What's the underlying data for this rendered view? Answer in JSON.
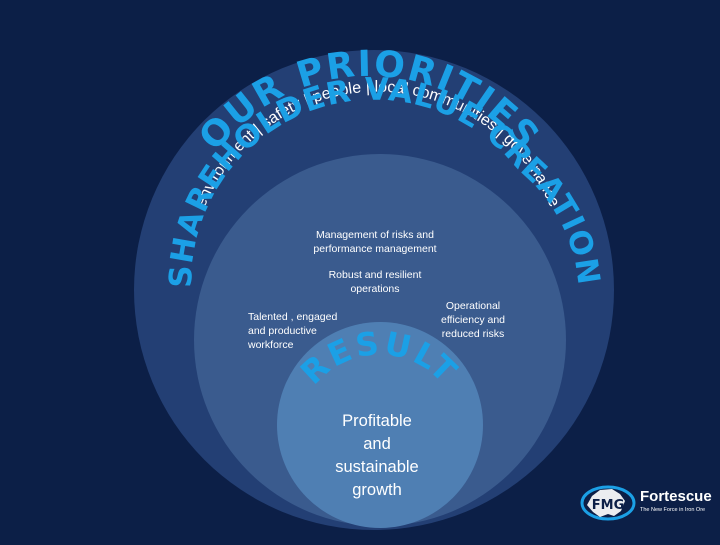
{
  "colors": {
    "background": "#0c1f47",
    "outer_circle": "#233f74",
    "middle_circle": "#3a5b8e",
    "inner_circle": "#4f7fb3",
    "arc_title": "#1ba0e6",
    "logo_ring": "#1ba0e6"
  },
  "outer": {
    "title": "OUR PRIORITIES",
    "subtitle": "environment | safety | people | local communities | governance"
  },
  "middle": {
    "title": "SHAREHOLDER VALUE CREATION",
    "items": [
      "Management of risks and\nperformance management",
      "Robust and resilient\noperations",
      "Talented , engaged\nand productive\nworkforce",
      "Operational\nefficiency and\nreduced risks"
    ]
  },
  "inner": {
    "title": "RESULT",
    "outcome": "Profitable\nand\nsustainable\ngrowth"
  },
  "logo": {
    "mark": "FMG",
    "wordmark": "Fortescue",
    "tagline": "The New Force in Iron Ore"
  }
}
